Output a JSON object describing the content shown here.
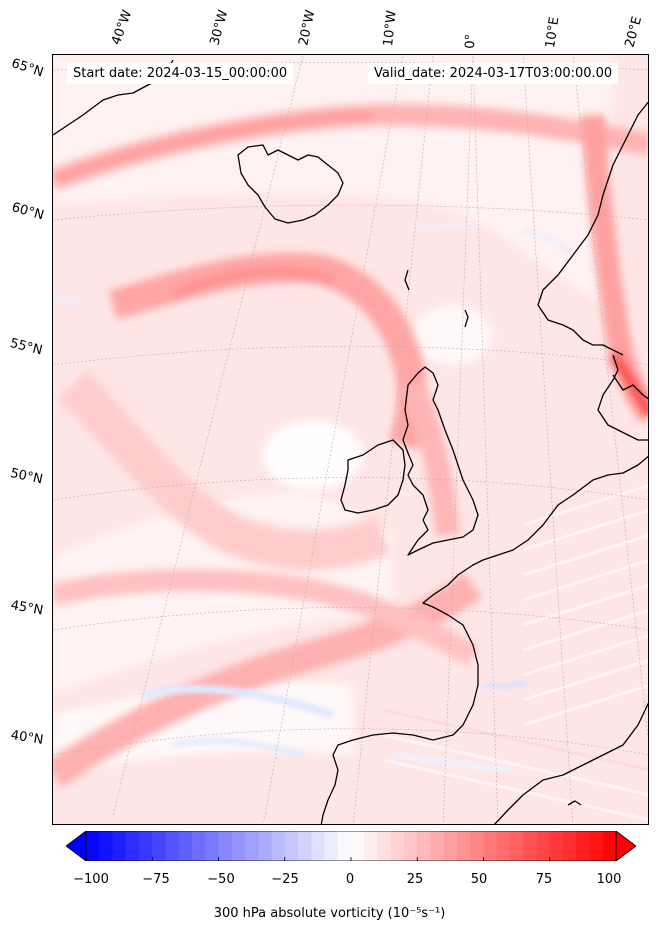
{
  "map": {
    "header": {
      "start_date": "Start date: 2024-03-15_00:00:00",
      "valid_date": "Valid_date: 2024-03-17T03:00:00.00"
    },
    "longitude_labels": [
      "40°W",
      "30°W",
      "20°W",
      "10°W",
      "0°",
      "10°E",
      "20°E"
    ],
    "latitude_labels": [
      "65°N",
      "60°N",
      "55°N",
      "50°N",
      "45°N",
      "40°N"
    ],
    "colors": {
      "ocean_background": "#fff0f0",
      "strong_positive": "#ff4040",
      "moderate_positive": "#ffb0b0",
      "weak_negative": "#e0e8ff",
      "coastline": "#000000"
    }
  },
  "colorbar": {
    "title": "300 hPa absolute vorticity (10⁻⁵s⁻¹)",
    "min": -100,
    "max": 100,
    "ticks": [
      "−100",
      "−75",
      "−50",
      "−25",
      "0",
      "25",
      "50",
      "75",
      "100"
    ],
    "tick_values": [
      -100,
      -75,
      -50,
      -25,
      0,
      25,
      50,
      75,
      100
    ],
    "low_color": "#0000ff",
    "mid_color": "#ffffff",
    "high_color": "#ff0000",
    "levels": 40
  }
}
